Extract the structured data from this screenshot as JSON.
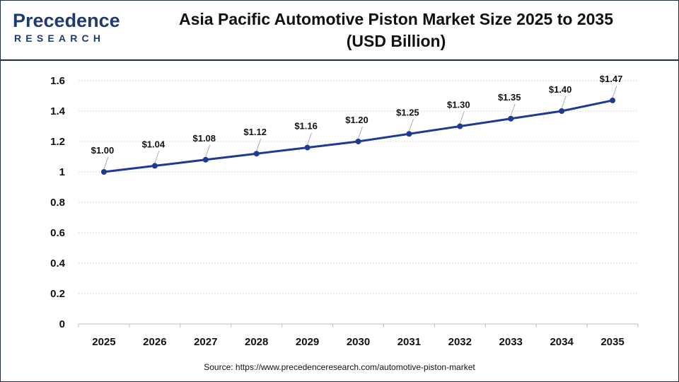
{
  "header": {
    "logo_text": "Precedence",
    "logo_subtext": "RESEARCH",
    "title_line1": "Asia Pacific Automotive Piston Market Size 2025 to 2035",
    "title_line2": "(USD Billion)"
  },
  "colors": {
    "line": "#1f3a93",
    "marker": "#1f3a93",
    "logo": "#1f3a6e",
    "grid": "#d9d9d9"
  },
  "chart_data": {
    "type": "line",
    "title": "Asia Pacific Automotive Piston Market Size 2025 to 2035 (USD Billion)",
    "xlabel": "",
    "ylabel": "",
    "categories": [
      "2025",
      "2026",
      "2027",
      "2028",
      "2029",
      "2030",
      "2031",
      "2032",
      "2033",
      "2034",
      "2035"
    ],
    "series": [
      {
        "values": [
          1.0,
          1.04,
          1.08,
          1.12,
          1.16,
          1.2,
          1.25,
          1.3,
          1.35,
          1.4,
          1.47
        ],
        "labels": [
          "$1.00",
          "$1.04",
          "$1.08",
          "$1.12",
          "$1.16",
          "$1.20",
          "$1.25",
          "$1.30",
          "$1.35",
          "$1.40",
          "$1.47"
        ]
      }
    ],
    "ylim": [
      0,
      1.6
    ],
    "yticks": [
      0,
      0.2,
      0.4,
      0.6,
      0.8,
      1,
      1.2,
      1.4,
      1.6
    ],
    "ytick_labels": [
      "0",
      "0.2",
      "0.4",
      "0.6",
      "0.8",
      "1",
      "1.2",
      "1.4",
      "1.6"
    ],
    "grid": true,
    "legend": "none"
  },
  "footer": {
    "source": "Source: https://www.precedenceresearch.com/automotive-piston-market"
  }
}
